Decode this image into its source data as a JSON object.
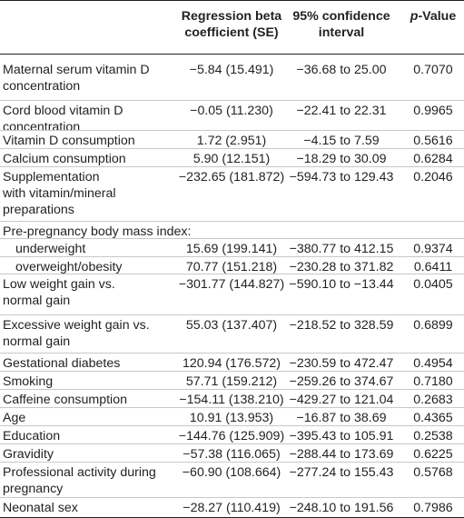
{
  "header": {
    "col1": [
      "Regression beta",
      "coefficient (SE)"
    ],
    "col2": [
      "95% confidence",
      "interval"
    ],
    "col3_italic": "p",
    "col3_rest": "-Value"
  },
  "rows": [
    {
      "label": [
        "Maternal serum vitamin D",
        "concentration"
      ],
      "beta": "−5.84 (15.491)",
      "ci": "−36.68 to 25.00",
      "p": "0.7070",
      "indent": false
    },
    {
      "label": [
        "Cord blood vitamin D",
        "concentration"
      ],
      "beta": "−0.05 (11.230)",
      "ci": "−22.41 to 22.31",
      "p": "0.9965",
      "indent": false
    },
    {
      "label": [
        "Vitamin D consumption"
      ],
      "beta": "1.72 (2.951)",
      "ci": "−4.15 to 7.59",
      "p": "0.5616",
      "indent": false
    },
    {
      "label": [
        "Calcium consumption"
      ],
      "beta": "5.90 (12.151)",
      "ci": "−18.29 to 30.09",
      "p": "0.6284",
      "indent": false
    },
    {
      "label": [
        "Supplementation",
        "with vitamin/mineral",
        "preparations"
      ],
      "beta": "−232.65 (181.872)",
      "ci": "−594.73 to 129.43",
      "p": "0.2046",
      "indent": false
    },
    {
      "label": [
        "Pre-pregnancy body mass index:"
      ],
      "beta": "",
      "ci": "",
      "p": "",
      "indent": false
    },
    {
      "label": [
        "underweight"
      ],
      "beta": "15.69 (199.141)",
      "ci": "−380.77 to 412.15",
      "p": "0.9374",
      "indent": true
    },
    {
      "label": [
        "overweight/obesity"
      ],
      "beta": "70.77 (151.218)",
      "ci": "−230.28 to 371.82",
      "p": "0.6411",
      "indent": true
    },
    {
      "label": [
        "Low weight gain vs.",
        "normal gain"
      ],
      "beta": "−301.77 (144.827)",
      "ci": "−590.10 to −13.44",
      "p": "0.0405",
      "indent": false
    },
    {
      "label": [
        "Excessive weight gain vs.",
        "normal gain"
      ],
      "beta": "55.03 (137.407)",
      "ci": "−218.52 to 328.59",
      "p": "0.6899",
      "indent": false
    },
    {
      "label": [
        "Gestational diabetes"
      ],
      "beta": "120.94 (176.572)",
      "ci": "−230.59 to 472.47",
      "p": "0.4954",
      "indent": false
    },
    {
      "label": [
        "Smoking"
      ],
      "beta": "57.71 (159.212)",
      "ci": "−259.26 to 374.67",
      "p": "0.7180",
      "indent": false
    },
    {
      "label": [
        "Caffeine consumption"
      ],
      "beta": "−154.11 (138.210)",
      "ci": "−429.27 to 121.04",
      "p": "0.2683",
      "indent": false
    },
    {
      "label": [
        "Age"
      ],
      "beta": "10.91 (13.953)",
      "ci": "−16.87 to 38.69",
      "p": "0.4365",
      "indent": false
    },
    {
      "label": [
        "Education"
      ],
      "beta": "−144.76 (125.909)",
      "ci": "−395.43 to 105.91",
      "p": "0.2538",
      "indent": false
    },
    {
      "label": [
        "Gravidity"
      ],
      "beta": "−57.38 (116.065)",
      "ci": "−288.44 to 173.69",
      "p": "0.6225",
      "indent": false
    },
    {
      "label": [
        "Professional activity during",
        "pregnancy"
      ],
      "beta": "−60.90 (108.664)",
      "ci": "−277.24 to 155.43",
      "p": "0.5768",
      "indent": false
    },
    {
      "label": [
        "Neonatal sex"
      ],
      "beta": "−28.27 (110.419)",
      "ci": "−248.10 to 191.56",
      "p": "0.7986",
      "indent": false
    }
  ]
}
